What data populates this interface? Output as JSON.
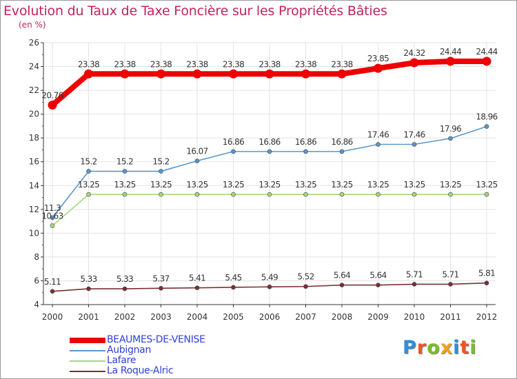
{
  "title": "Evolution du Taux de Taxe Foncière sur les Propriétés Bâties",
  "unit": "(en %)",
  "logo": {
    "letters": [
      {
        "ch": "P",
        "color": "#2f8fd8"
      },
      {
        "ch": "r",
        "color": "#e9572b"
      },
      {
        "ch": "o",
        "color": "#7cbb2c"
      },
      {
        "ch": "x",
        "color": "#f0a11e"
      },
      {
        "ch": "i",
        "color": "#2f8fd8"
      },
      {
        "ch": "t",
        "color": "#e9572b"
      },
      {
        "ch": "i",
        "color": "#7cbb2c"
      }
    ]
  },
  "chart_data": {
    "type": "line",
    "x": [
      "2000",
      "2001",
      "2002",
      "2003",
      "2004",
      "2005",
      "2006",
      "2007",
      "2008",
      "2009",
      "2010",
      "2011",
      "2012"
    ],
    "ylim": [
      4,
      26
    ],
    "yticks": [
      4,
      6,
      8,
      10,
      12,
      14,
      16,
      18,
      20,
      22,
      24,
      26
    ],
    "grid": true,
    "legend": "bottom-left",
    "series": [
      {
        "name": "BEAUMES-DE-VENISE",
        "color": "#ee0000",
        "values": [
          20.76,
          23.38,
          23.38,
          23.38,
          23.38,
          23.38,
          23.38,
          23.38,
          23.38,
          23.85,
          24.32,
          24.44,
          24.44
        ],
        "labels": [
          "20.76",
          "23.38",
          "23.38",
          "23.38",
          "23.38",
          "23.38",
          "23.38",
          "23.38",
          "23.38",
          "23.85",
          "24.32",
          "24.44",
          "24.44"
        ]
      },
      {
        "name": "Aubignan",
        "color": "#5a96cc",
        "values": [
          11.3,
          15.2,
          15.2,
          15.2,
          16.07,
          16.86,
          16.86,
          16.86,
          16.86,
          17.46,
          17.46,
          17.96,
          18.96
        ],
        "labels": [
          "11.3",
          "15.2",
          "15.2",
          "15.2",
          "16.07",
          "16.86",
          "16.86",
          "16.86",
          "16.86",
          "17.46",
          "17.46",
          "17.96",
          "18.96"
        ]
      },
      {
        "name": "Lafare",
        "color": "#a5d97c",
        "values": [
          10.63,
          13.25,
          13.25,
          13.25,
          13.25,
          13.25,
          13.25,
          13.25,
          13.25,
          13.25,
          13.25,
          13.25,
          13.25
        ],
        "labels": [
          "10.63",
          "13.25",
          "13.25",
          "13.25",
          "13.25",
          "13.25",
          "13.25",
          "13.25",
          "13.25",
          "13.25",
          "13.25",
          "13.25",
          "13.25"
        ]
      },
      {
        "name": "La Roque-Alric",
        "color": "#7a2f33",
        "values": [
          5.11,
          5.33,
          5.33,
          5.37,
          5.41,
          5.45,
          5.49,
          5.52,
          5.64,
          5.64,
          5.71,
          5.71,
          5.81
        ],
        "labels": [
          "5.11",
          "5.33",
          "5.33",
          "5.37",
          "5.41",
          "5.45",
          "5.49",
          "5.52",
          "5.64",
          "5.64",
          "5.71",
          "5.71",
          "5.81"
        ]
      }
    ]
  }
}
